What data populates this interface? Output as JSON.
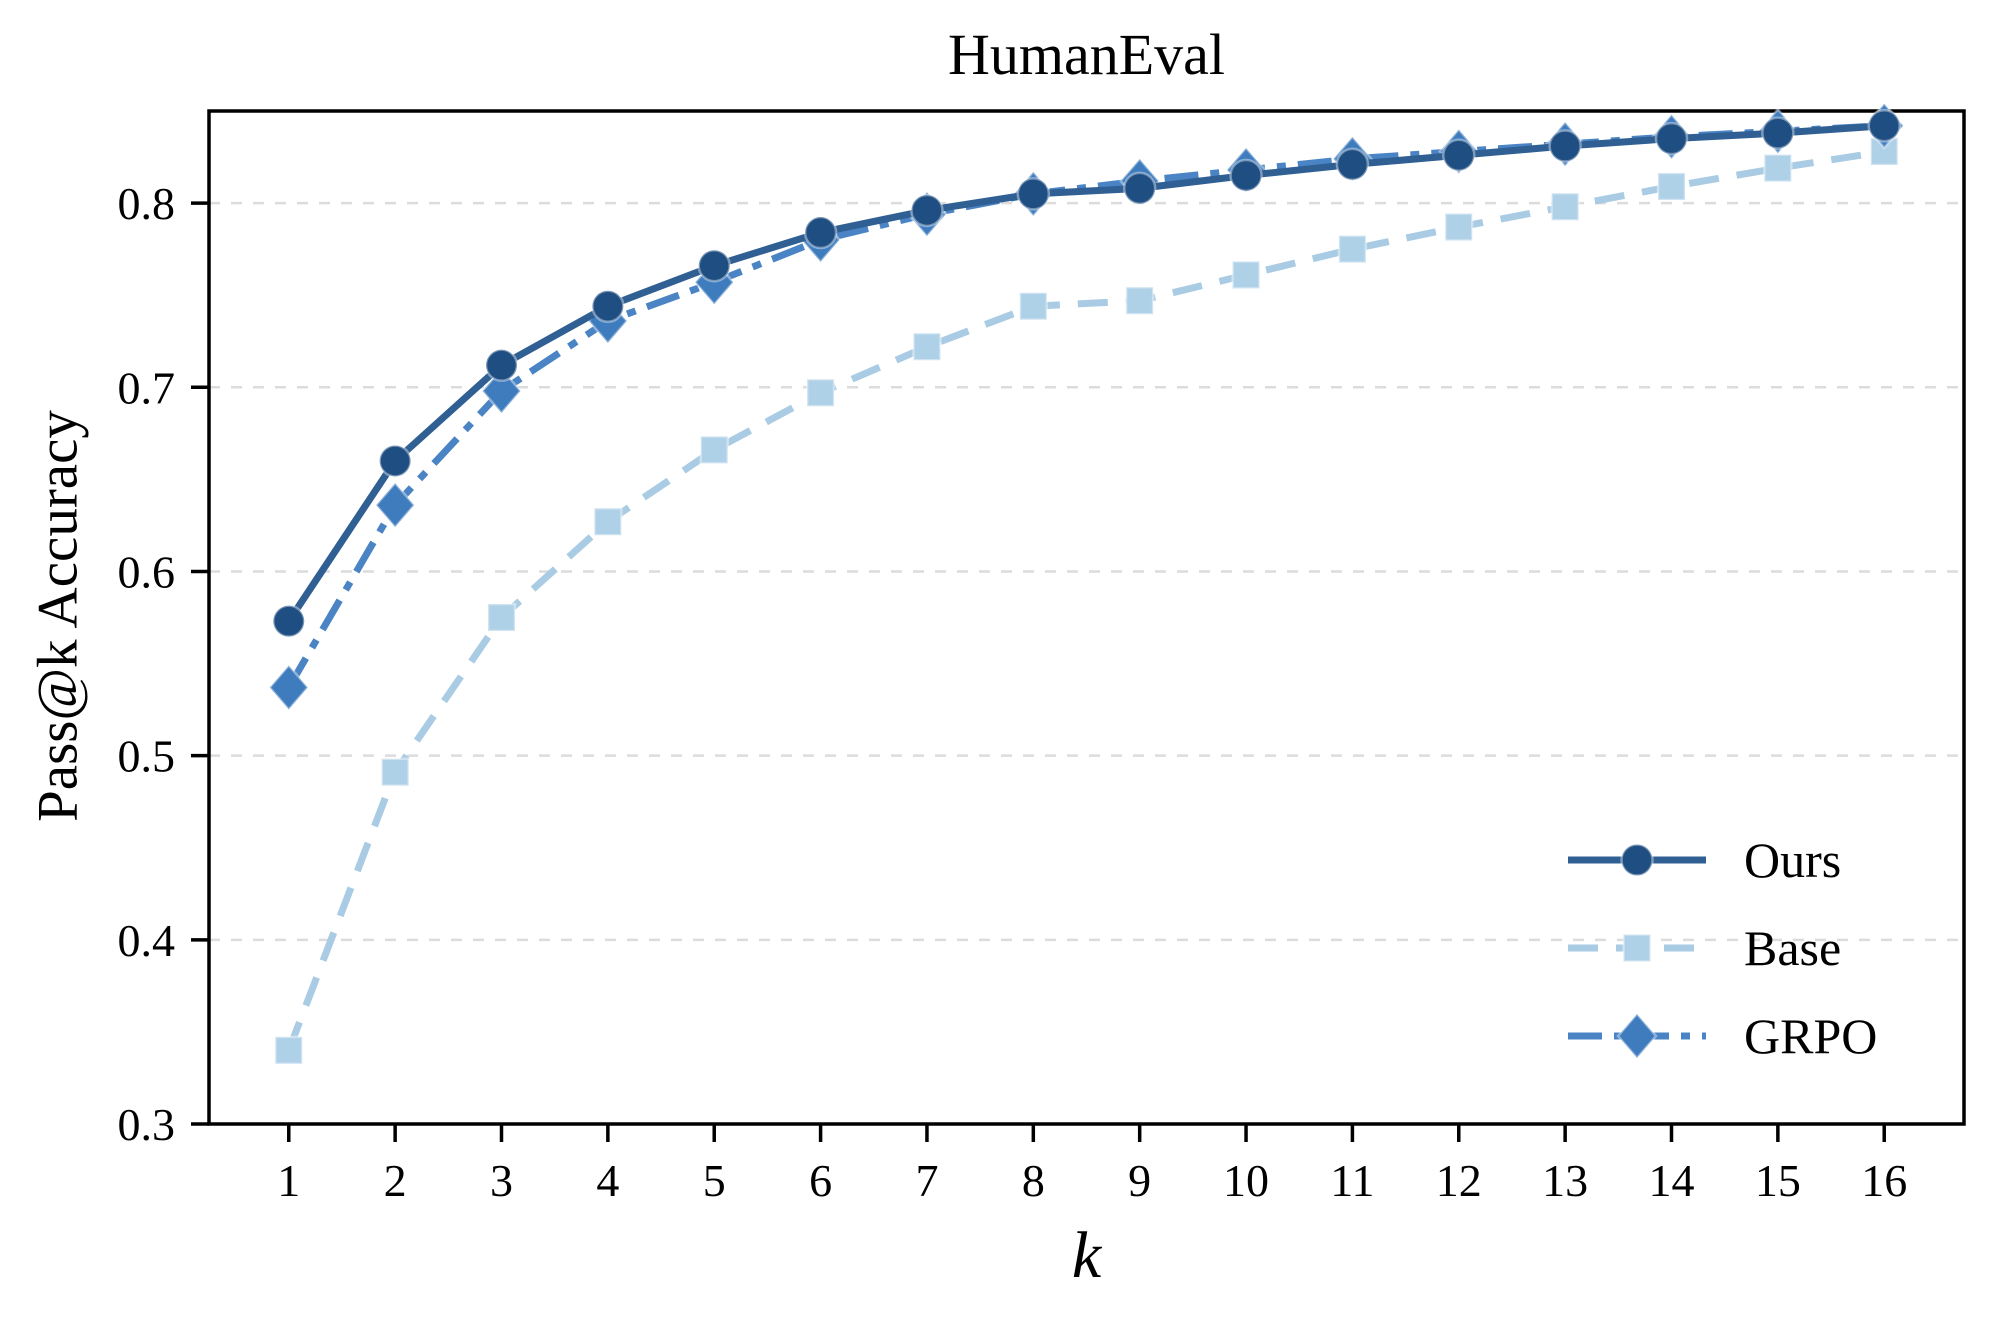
{
  "page": {
    "background": "#ffffff"
  },
  "chart_data": {
    "type": "line",
    "title": "HumanEval",
    "xlabel": "k",
    "ylabel": "Pass@k Accuracy",
    "x": [
      1,
      2,
      3,
      4,
      5,
      6,
      7,
      8,
      9,
      10,
      11,
      12,
      13,
      14,
      15,
      16
    ],
    "x_tick_labels": [
      "1",
      "2",
      "3",
      "4",
      "5",
      "6",
      "7",
      "8",
      "9",
      "10",
      "11",
      "12",
      "13",
      "14",
      "15",
      "16"
    ],
    "y_ticks": [
      0.3,
      0.4,
      0.5,
      0.6,
      0.7,
      0.8
    ],
    "y_tick_labels": [
      "0.3",
      "0.4",
      "0.5",
      "0.6",
      "0.7",
      "0.8"
    ],
    "xlim": [
      0.25,
      16.75
    ],
    "ylim": [
      0.3,
      0.85
    ],
    "grid": "horizontal-dashed",
    "legend_position": "lower-right",
    "series": [
      {
        "name": "Ours",
        "marker": "circle",
        "line_style": "solid",
        "line_color": "#2F5F93",
        "marker_color": "#1E4E82",
        "values": [
          0.573,
          0.66,
          0.712,
          0.744,
          0.766,
          0.784,
          0.796,
          0.805,
          0.808,
          0.815,
          0.821,
          0.826,
          0.831,
          0.835,
          0.838,
          0.842
        ]
      },
      {
        "name": "Base",
        "marker": "square",
        "line_style": "dashed",
        "line_color": "#A9CBE3",
        "marker_color": "#AFD1E8",
        "values": [
          0.34,
          0.491,
          0.575,
          0.627,
          0.666,
          0.697,
          0.722,
          0.744,
          0.747,
          0.761,
          0.775,
          0.787,
          0.798,
          0.809,
          0.819,
          0.828
        ]
      },
      {
        "name": "GRPO",
        "marker": "diamond",
        "line_style": "dash-dot",
        "line_color": "#4A84C4",
        "marker_color": "#3E7CBE",
        "values": [
          0.537,
          0.636,
          0.698,
          0.736,
          0.757,
          0.78,
          0.794,
          0.805,
          0.812,
          0.818,
          0.824,
          0.828,
          0.832,
          0.836,
          0.839,
          0.842
        ]
      }
    ],
    "colors": {
      "grid": "#DCDCDC",
      "axis": "#000000",
      "text": "#000000"
    }
  }
}
